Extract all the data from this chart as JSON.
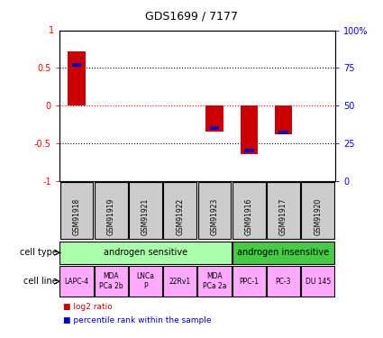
{
  "title": "GDS1699 / 7177",
  "samples": [
    "GSM91918",
    "GSM91919",
    "GSM91921",
    "GSM91922",
    "GSM91923",
    "GSM91916",
    "GSM91917",
    "GSM91920"
  ],
  "log2_ratio": [
    0.72,
    0.0,
    0.0,
    0.0,
    -0.35,
    -0.65,
    -0.38,
    0.0
  ],
  "percentile_rank": [
    77,
    0,
    0,
    0,
    35,
    20,
    32,
    0
  ],
  "cell_types": [
    {
      "label": "androgen sensitive",
      "start": 0,
      "end": 5,
      "color": "#aaffaa"
    },
    {
      "label": "androgen insensitive",
      "start": 5,
      "end": 8,
      "color": "#44cc44"
    }
  ],
  "cell_lines": [
    {
      "label": "LAPC-4",
      "start": 0,
      "end": 1
    },
    {
      "label": "MDA\nPCa 2b",
      "start": 1,
      "end": 2
    },
    {
      "label": "LNCa\nP",
      "start": 2,
      "end": 3
    },
    {
      "label": "22Rv1",
      "start": 3,
      "end": 4
    },
    {
      "label": "MDA\nPCa 2a",
      "start": 4,
      "end": 5
    },
    {
      "label": "PPC-1",
      "start": 5,
      "end": 6
    },
    {
      "label": "PC-3",
      "start": 6,
      "end": 7
    },
    {
      "label": "DU 145",
      "start": 7,
      "end": 8
    }
  ],
  "cell_line_color": "#ffaaff",
  "bar_color_log2": "#cc0000",
  "bar_color_pct": "#0000cc",
  "ylim": [
    -1,
    1
  ],
  "y_ticks_left": [
    -1,
    -0.5,
    0,
    0.5
  ],
  "y_ticks_right": [
    0,
    25,
    50,
    75,
    100
  ],
  "sample_box_color": "#cccccc",
  "legend_log2_label": "log2 ratio",
  "legend_pct_label": "percentile rank within the sample",
  "cell_type_label": "cell type",
  "cell_line_label": "cell line"
}
